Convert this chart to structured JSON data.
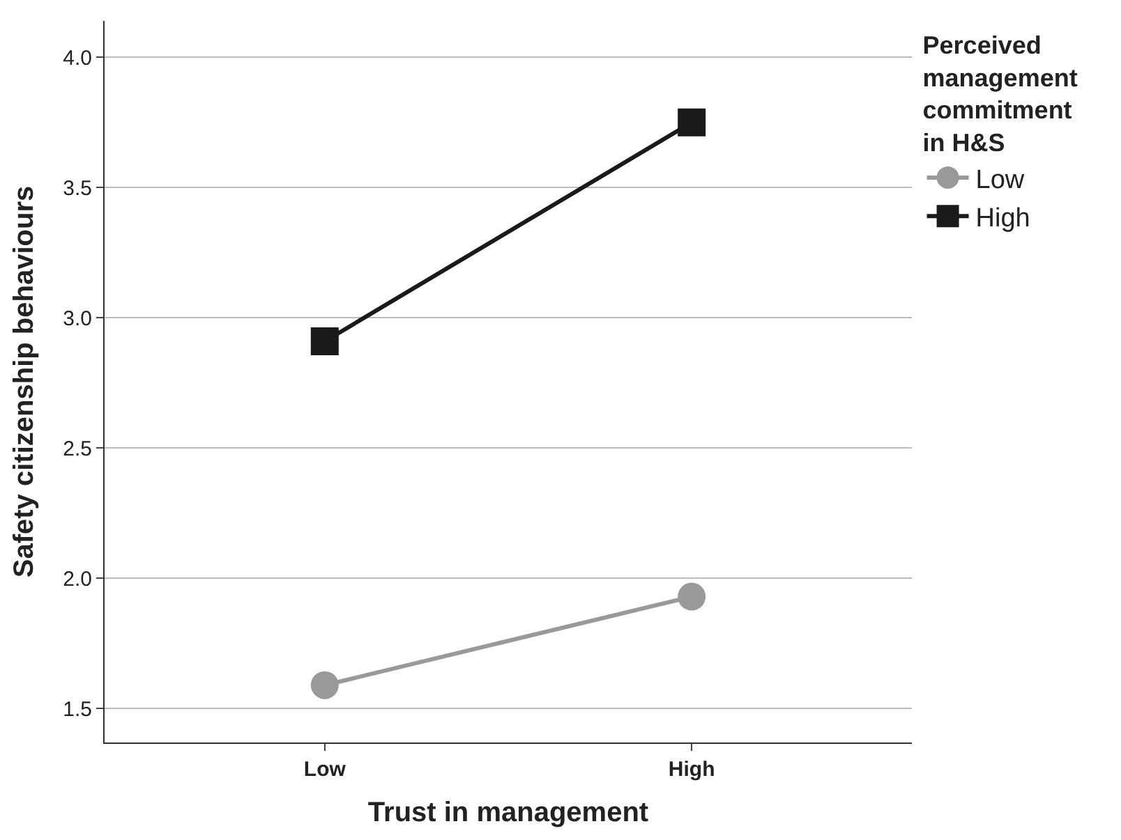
{
  "chart_data": {
    "type": "line",
    "xlabel": "Trust in management",
    "ylabel": "Safety citizenship behaviours",
    "legend_title": "Perceived management commitment in H&S",
    "categories": [
      "Low",
      "High"
    ],
    "series": [
      {
        "name": "Low",
        "color": "#999999",
        "marker": "circle",
        "values": [
          1.59,
          1.93
        ]
      },
      {
        "name": "High",
        "color": "#1a1a1a",
        "marker": "square",
        "values": [
          2.91,
          3.75
        ]
      }
    ],
    "ylim": [
      1.37,
      4.14
    ],
    "yticks": [
      {
        "value": 1.5,
        "label": "1.5"
      },
      {
        "value": 2.0,
        "label": "2.0"
      },
      {
        "value": 2.5,
        "label": "2.5"
      },
      {
        "value": 3.0,
        "label": "3.0"
      },
      {
        "value": 3.5,
        "label": "3.5"
      },
      {
        "value": 4.0,
        "label": "4.0"
      }
    ],
    "grid": "y",
    "legend": "top right",
    "line_style": "solid"
  }
}
